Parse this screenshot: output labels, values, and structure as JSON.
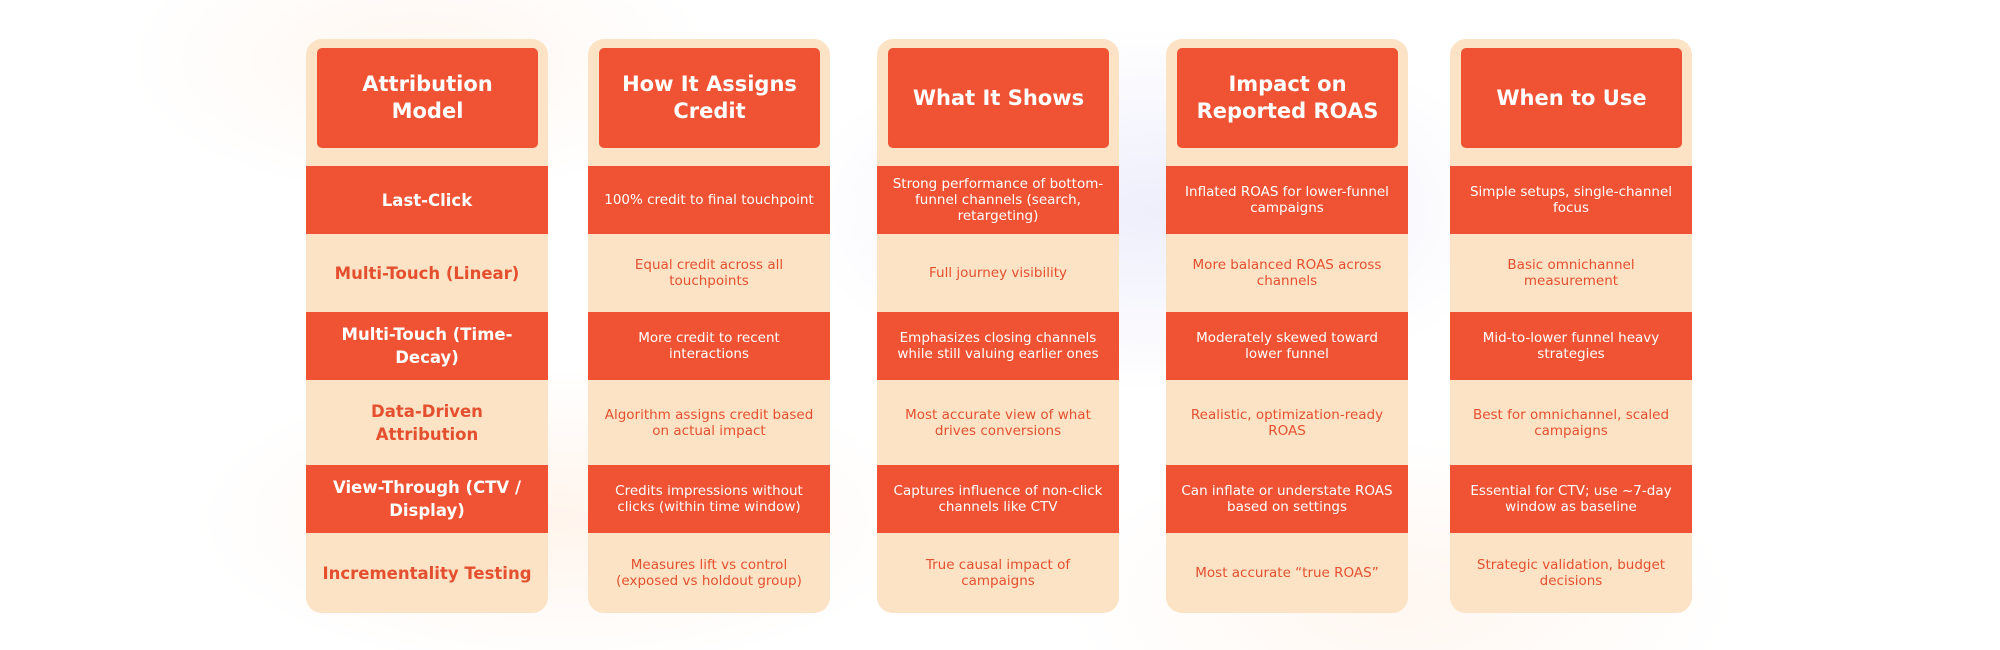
{
  "columns": [
    {
      "header": "Attribution Model",
      "rows": [
        "Last-Click",
        "Multi-Touch (Linear)",
        "Multi-Touch (Time-Decay)",
        "Data-Driven Attribution",
        "View-Through (CTV / Display)",
        "Incrementality Testing"
      ]
    },
    {
      "header": "How It Assigns Credit",
      "rows": [
        "100% credit to final touchpoint",
        "Equal credit across all touchpoints",
        "More credit to recent interactions",
        "Algorithm assigns credit based on actual impact",
        "Credits impressions without clicks (within time window)",
        "Measures lift vs control (exposed vs holdout group)"
      ]
    },
    {
      "header": "What It Shows",
      "rows": [
        "Strong performance of bottom-funnel channels (search, retargeting)",
        "Full journey visibility",
        "Emphasizes closing channels while still valuing earlier ones",
        "Most accurate view of what drives conversions",
        "Captures influence of non-click channels like CTV",
        "True causal impact of campaigns"
      ]
    },
    {
      "header": "Impact on Reported ROAS",
      "rows": [
        "Inflated ROAS for lower-funnel campaigns",
        "More balanced ROAS across channels",
        "Moderately skewed toward lower funnel",
        "Realistic, optimization-ready ROAS",
        "Can inflate or understate ROAS based on settings",
        "Most accurate “true ROAS”"
      ]
    },
    {
      "header": "When to Use",
      "rows": [
        "Simple setups, single-channel focus",
        "Basic omnichannel measurement",
        "Mid-to-lower funnel heavy strategies",
        "Best for omnichannel, scaled campaigns",
        "Essential for CTV; use ~7-day window as baseline",
        "Strategic validation, budget decisions"
      ]
    }
  ],
  "colors": {
    "accent": "#ef5333",
    "panel": "#fde3c6",
    "light_text": "#e4502f",
    "dark_text": "#ffffff"
  }
}
